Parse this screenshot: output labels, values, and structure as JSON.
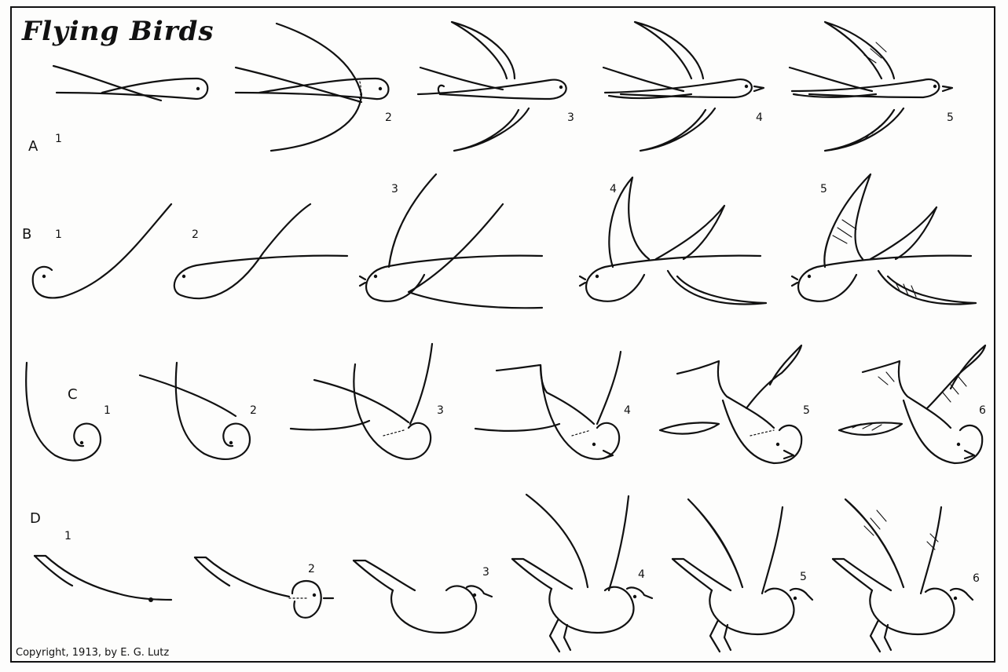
{
  "title": "Flying Birds",
  "rows": {
    "A": {
      "label": "A",
      "steps": [
        "1",
        "2",
        "3",
        "4",
        "5"
      ]
    },
    "B": {
      "label": "B",
      "steps": [
        "1",
        "2",
        "3",
        "4",
        "5"
      ]
    },
    "C": {
      "label": "C",
      "steps": [
        "1",
        "2",
        "3",
        "4",
        "5",
        "6"
      ]
    },
    "D": {
      "label": "D",
      "steps": [
        "1",
        "2",
        "3",
        "4",
        "5",
        "6"
      ]
    }
  },
  "copyright": "Copyright, 1913, by E. G. Lutz"
}
